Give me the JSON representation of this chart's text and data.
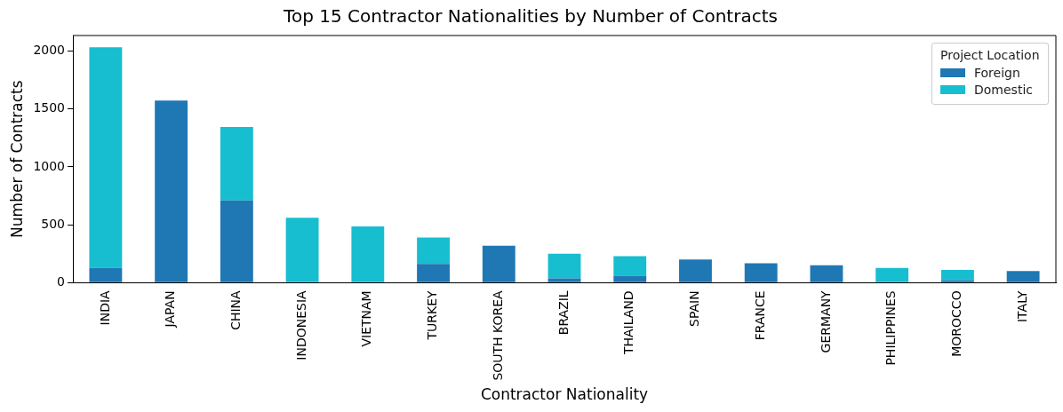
{
  "chart_data": {
    "type": "bar",
    "title": "Top 15 Contractor Nationalities by Number of Contracts",
    "xlabel": "Contractor Nationality",
    "ylabel": "Number of Contracts",
    "legend_title": "Project Location",
    "categories": [
      "INDIA",
      "JAPAN",
      "CHINA",
      "INDONESIA",
      "VIETNAM",
      "TURKEY",
      "SOUTH KOREA",
      "BRAZIL",
      "THAILAND",
      "SPAIN",
      "FRANCE",
      "GERMANY",
      "PHILIPPINES",
      "MOROCCO",
      "ITALY"
    ],
    "series": [
      {
        "name": "Foreign",
        "color": "#1f77b4",
        "values": [
          128,
          1574,
          710,
          5,
          5,
          161,
          319,
          38,
          60,
          200,
          167,
          150,
          0,
          22,
          101
        ]
      },
      {
        "name": "Domestic",
        "color": "#17becf",
        "values": [
          1905,
          0,
          635,
          555,
          481,
          229,
          0,
          211,
          169,
          0,
          0,
          0,
          128,
          87,
          0
        ]
      }
    ],
    "stacked": true,
    "ylim": [
      0,
      2135
    ],
    "yticks": [
      0,
      500,
      1000,
      1500,
      2000
    ],
    "grid": false,
    "legend": "top right"
  }
}
